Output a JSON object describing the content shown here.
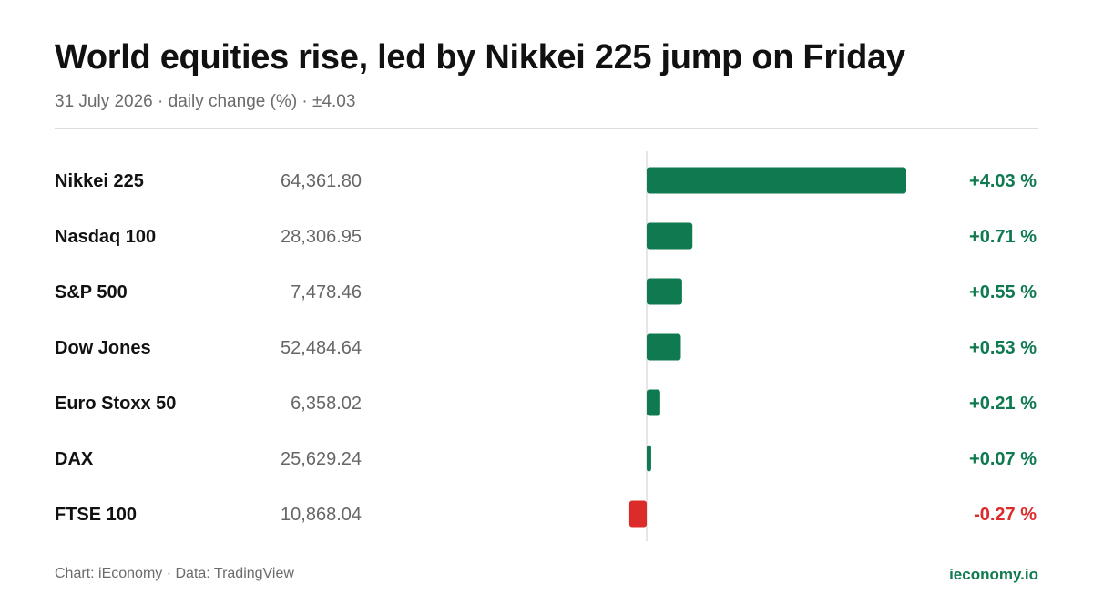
{
  "title": "World equities rise, led by Nikkei 225 jump on Friday",
  "subtitle": "31 July 2026 · daily change (%) · ±4.03",
  "footer": {
    "credit": "Chart: iEconomy · Data: TradingView",
    "site": "ieconomy.io"
  },
  "colors": {
    "positive": "#0f7a4f",
    "negative": "#dc2b2b",
    "name_text": "#111111",
    "value_text": "#666666",
    "axis": "#cccccc"
  },
  "chart_data": {
    "type": "bar",
    "orientation": "horizontal",
    "xlim": [
      -4.03,
      4.03
    ],
    "unit": "%",
    "rows": [
      {
        "name": "Nikkei 225",
        "level": "64,361.80",
        "change": 4.03,
        "change_label": "+4.03 %"
      },
      {
        "name": "Nasdaq 100",
        "level": "28,306.95",
        "change": 0.71,
        "change_label": "+0.71 %"
      },
      {
        "name": "S&P 500",
        "level": "7,478.46",
        "change": 0.55,
        "change_label": "+0.55 %"
      },
      {
        "name": "Dow Jones",
        "level": "52,484.64",
        "change": 0.53,
        "change_label": "+0.53 %"
      },
      {
        "name": "Euro Stoxx 50",
        "level": "6,358.02",
        "change": 0.21,
        "change_label": "+0.21 %"
      },
      {
        "name": "DAX",
        "level": "25,629.24",
        "change": 0.07,
        "change_label": "+0.07 %"
      },
      {
        "name": "FTSE 100",
        "level": "10,868.04",
        "change": -0.27,
        "change_label": "-0.27 %"
      }
    ]
  }
}
